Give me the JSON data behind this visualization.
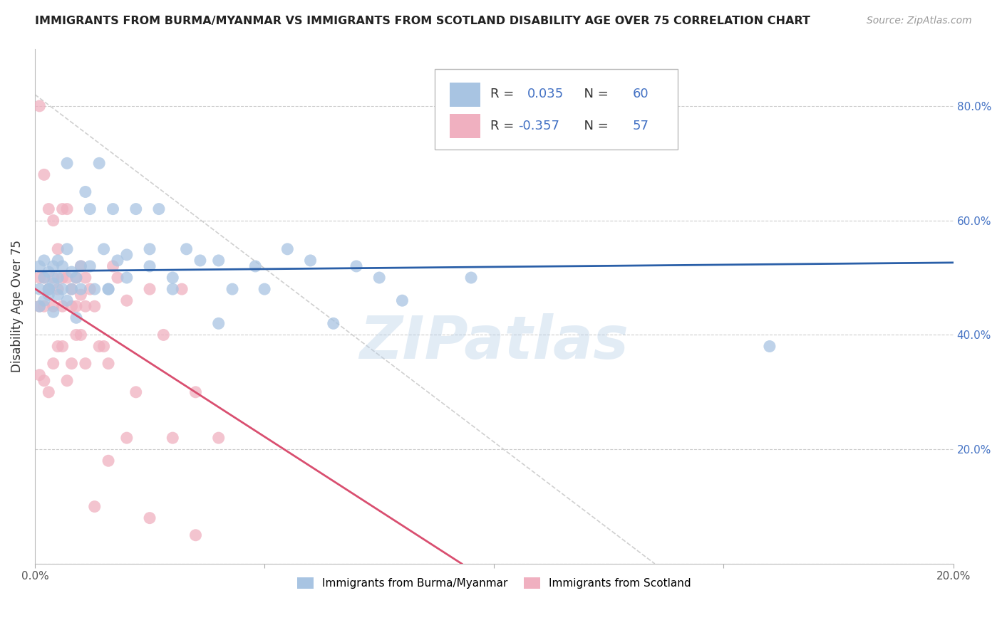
{
  "title": "IMMIGRANTS FROM BURMA/MYANMAR VS IMMIGRANTS FROM SCOTLAND DISABILITY AGE OVER 75 CORRELATION CHART",
  "source": "Source: ZipAtlas.com",
  "ylabel": "Disability Age Over 75",
  "xlim": [
    0.0,
    0.2
  ],
  "ylim": [
    0.0,
    0.9
  ],
  "r_burma": 0.035,
  "n_burma": 60,
  "r_scotland": -0.357,
  "n_scotland": 57,
  "legend_label_burma": "Immigrants from Burma/Myanmar",
  "legend_label_scotland": "Immigrants from Scotland",
  "color_burma": "#a8c4e2",
  "color_burma_line": "#2a5fa8",
  "color_scotland": "#f0b0c0",
  "color_scotland_line": "#d94f70",
  "color_diag_line": "#d0d0d0",
  "background_color": "#ffffff",
  "grid_color": "#cccccc",
  "watermark_text": "ZIPatlas",
  "right_tick_color": "#4472c4",
  "legend_r_n_color": "#4472c4",
  "burma_x": [
    0.001,
    0.001,
    0.001,
    0.002,
    0.002,
    0.002,
    0.003,
    0.003,
    0.003,
    0.004,
    0.004,
    0.004,
    0.005,
    0.005,
    0.005,
    0.006,
    0.006,
    0.007,
    0.007,
    0.008,
    0.008,
    0.009,
    0.009,
    0.01,
    0.01,
    0.011,
    0.012,
    0.013,
    0.014,
    0.015,
    0.016,
    0.017,
    0.018,
    0.02,
    0.022,
    0.025,
    0.027,
    0.03,
    0.033,
    0.036,
    0.04,
    0.043,
    0.048,
    0.05,
    0.055,
    0.06,
    0.065,
    0.07,
    0.075,
    0.08,
    0.003,
    0.007,
    0.012,
    0.016,
    0.02,
    0.025,
    0.03,
    0.04,
    0.16,
    0.095
  ],
  "burma_y": [
    0.48,
    0.52,
    0.45,
    0.5,
    0.46,
    0.53,
    0.48,
    0.51,
    0.47,
    0.52,
    0.49,
    0.44,
    0.5,
    0.53,
    0.47,
    0.48,
    0.52,
    0.55,
    0.46,
    0.51,
    0.48,
    0.43,
    0.5,
    0.48,
    0.52,
    0.65,
    0.62,
    0.48,
    0.7,
    0.55,
    0.48,
    0.62,
    0.53,
    0.54,
    0.62,
    0.52,
    0.62,
    0.48,
    0.55,
    0.53,
    0.53,
    0.48,
    0.52,
    0.48,
    0.55,
    0.53,
    0.42,
    0.52,
    0.5,
    0.46,
    0.48,
    0.7,
    0.52,
    0.48,
    0.5,
    0.55,
    0.5,
    0.42,
    0.38,
    0.5
  ],
  "scotland_x": [
    0.001,
    0.001,
    0.001,
    0.002,
    0.002,
    0.002,
    0.003,
    0.003,
    0.004,
    0.004,
    0.004,
    0.005,
    0.005,
    0.006,
    0.006,
    0.006,
    0.007,
    0.007,
    0.008,
    0.008,
    0.009,
    0.009,
    0.01,
    0.01,
    0.011,
    0.011,
    0.012,
    0.013,
    0.014,
    0.015,
    0.016,
    0.017,
    0.018,
    0.02,
    0.022,
    0.025,
    0.028,
    0.032,
    0.035,
    0.04,
    0.001,
    0.002,
    0.003,
    0.004,
    0.005,
    0.006,
    0.007,
    0.008,
    0.009,
    0.01,
    0.011,
    0.013,
    0.016,
    0.02,
    0.025,
    0.03,
    0.035
  ],
  "scotland_y": [
    0.8,
    0.5,
    0.45,
    0.68,
    0.5,
    0.45,
    0.62,
    0.48,
    0.6,
    0.5,
    0.45,
    0.55,
    0.48,
    0.5,
    0.62,
    0.45,
    0.5,
    0.62,
    0.48,
    0.45,
    0.5,
    0.45,
    0.52,
    0.47,
    0.5,
    0.45,
    0.48,
    0.45,
    0.38,
    0.38,
    0.35,
    0.52,
    0.5,
    0.46,
    0.3,
    0.48,
    0.4,
    0.48,
    0.3,
    0.22,
    0.33,
    0.32,
    0.3,
    0.35,
    0.38,
    0.38,
    0.32,
    0.35,
    0.4,
    0.4,
    0.35,
    0.1,
    0.18,
    0.22,
    0.08,
    0.22,
    0.05
  ]
}
